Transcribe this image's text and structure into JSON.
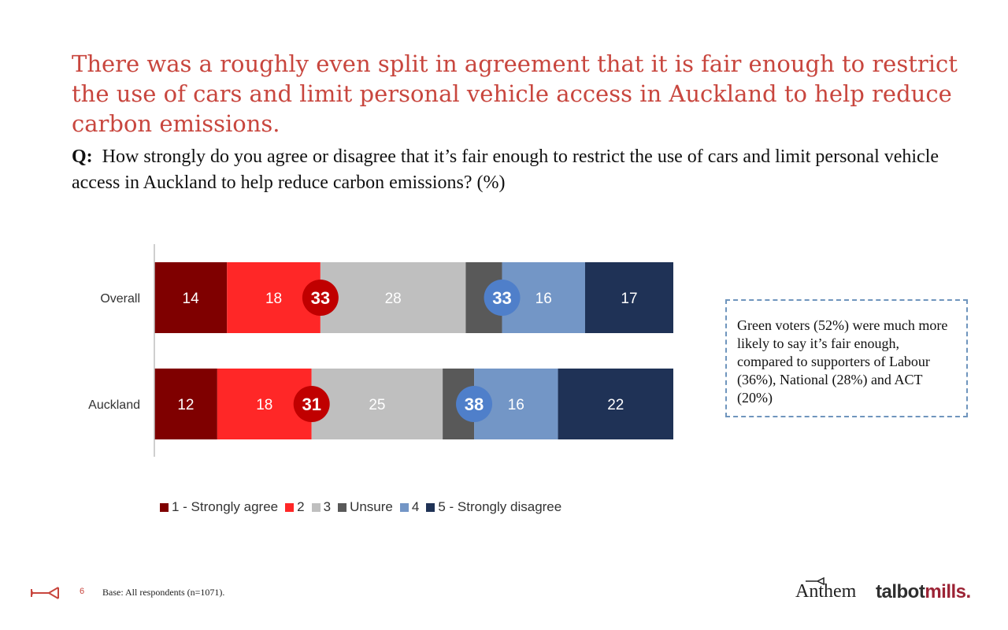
{
  "title": "There was a roughly even split in agreement that it is fair enough to restrict the use of cars and limit personal vehicle access in Auckland to help reduce carbon emissions.",
  "question": {
    "prefix": "Q:",
    "text": "How strongly do you agree or disagree that it’s fair enough to restrict the use of cars and limit personal vehicle access in Auckland to help reduce carbon emissions? (%)"
  },
  "callout": "Green voters (52%) were much more likely to say it’s fair enough, compared to supporters of Labour (36%), National (28%) and ACT (20%)",
  "footer": {
    "page_number": "6",
    "base": "Base: All respondents (n=1071)."
  },
  "logos": {
    "anthem": "Anthem",
    "talbot_main": "talbot",
    "talbot_accent": "mills."
  },
  "chart_data": {
    "type": "bar",
    "orientation": "horizontal",
    "stacked": true,
    "categories": [
      "Overall",
      "Auckland"
    ],
    "series": [
      {
        "name": "1 - Strongly agree",
        "color": "#7f0000",
        "values": [
          14,
          12
        ]
      },
      {
        "name": "2",
        "color": "#ff2727",
        "values": [
          18,
          18
        ]
      },
      {
        "name": "3",
        "color": "#bfbfbf",
        "values": [
          28,
          25
        ]
      },
      {
        "name": "Unsure",
        "color": "#595959",
        "values": [
          7,
          6
        ]
      },
      {
        "name": "4",
        "color": "#7396c6",
        "values": [
          16,
          16
        ]
      },
      {
        "name": "5 - Strongly disagree",
        "color": "#1f3256",
        "values": [
          17,
          22
        ]
      }
    ],
    "net_agree": [
      33,
      31
    ],
    "net_disagree": [
      33,
      38
    ],
    "net_agree_color": "#c00000",
    "net_disagree_color": "#4f7fca",
    "legend_position": "bottom"
  }
}
